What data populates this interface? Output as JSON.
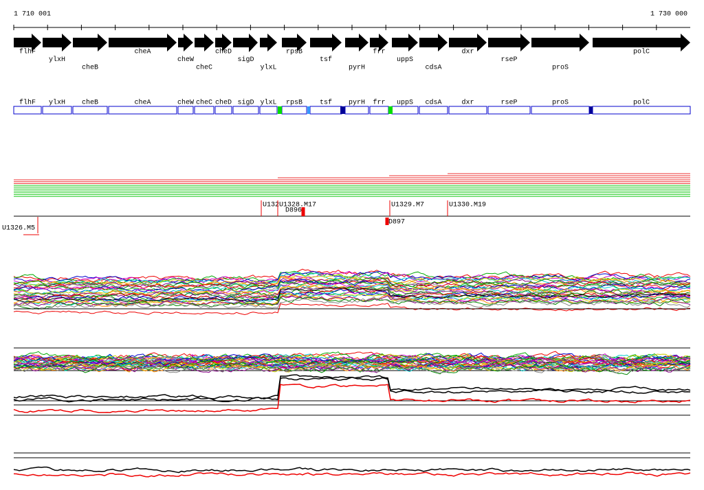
{
  "ruler": {
    "start": "1 710 001",
    "end": "1 730 000"
  },
  "genes": [
    "flhF",
    "ylxH",
    "cheB",
    "cheA",
    "cheW",
    "cheC",
    "cheD",
    "sigD",
    "ylxL",
    "rpsB",
    "tsf",
    "pyrH",
    "frr",
    "uppS",
    "cdsA",
    "dxr",
    "rseP",
    "proS",
    "polC"
  ],
  "segments": [
    "U1326.M5",
    "U132",
    "U1328.M17",
    "D896",
    "U1329.M7",
    "U1330.M19",
    "D897"
  ]
}
